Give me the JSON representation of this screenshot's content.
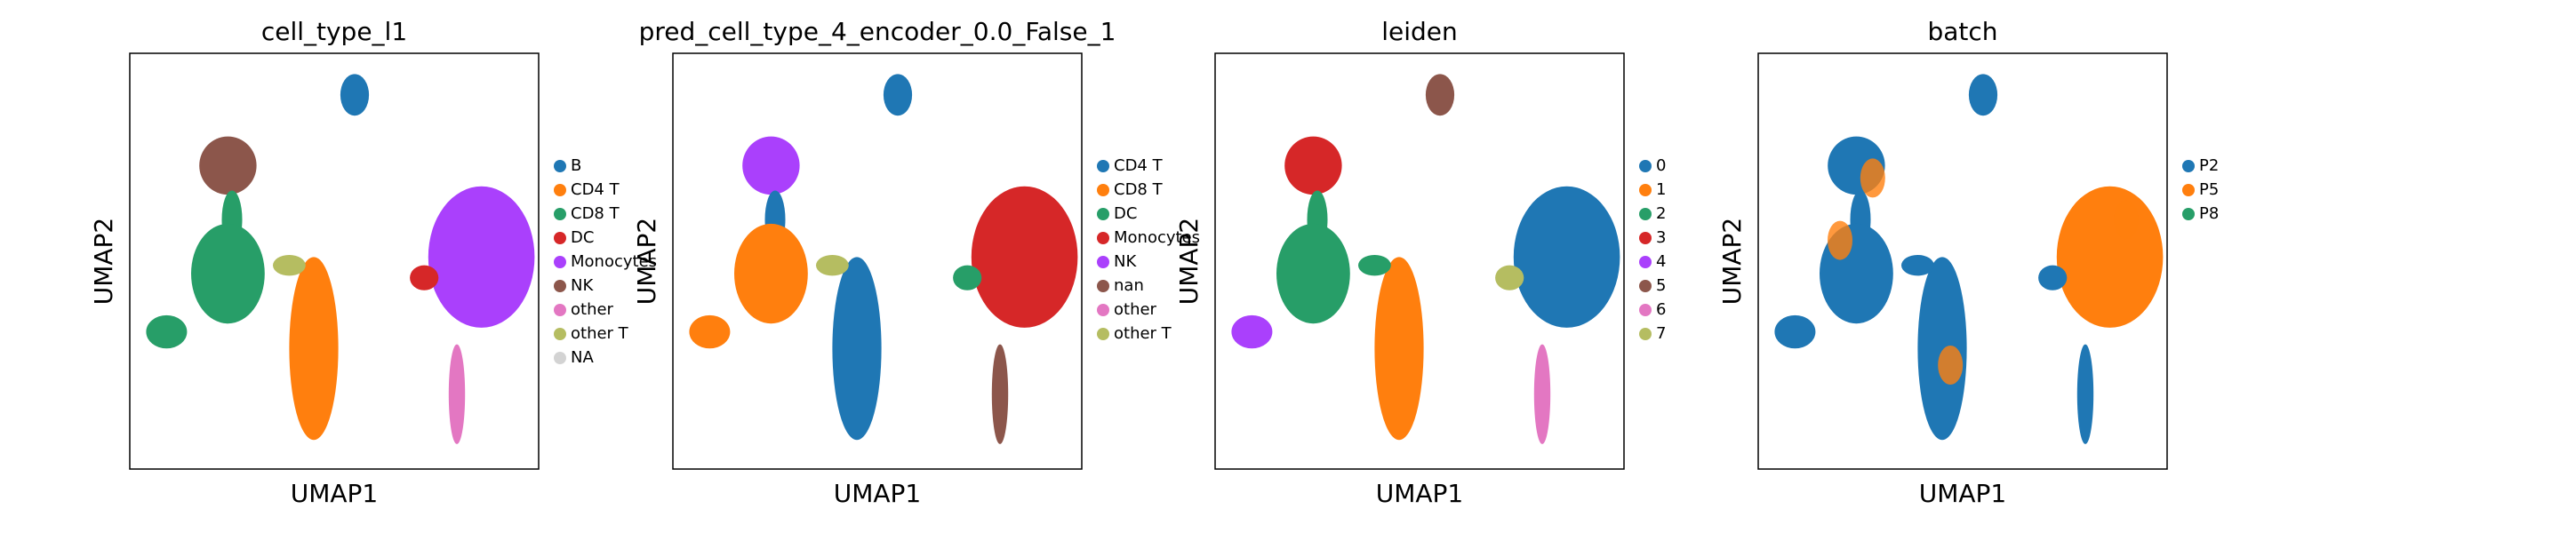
{
  "chart_data": [
    {
      "type": "scatter",
      "title": "cell_type_l1",
      "x_label": "UMAP1",
      "y_label": "UMAP2",
      "series": [
        {
          "name": "B",
          "color": "#1f77b4"
        },
        {
          "name": "CD4 T",
          "color": "#ff7f0e"
        },
        {
          "name": "CD8 T",
          "color": "#279e68"
        },
        {
          "name": "DC",
          "color": "#d62728"
        },
        {
          "name": "Monocytes",
          "color": "#aa40fc"
        },
        {
          "name": "NK",
          "color": "#8c564b"
        },
        {
          "name": "other",
          "color": "#e377c2"
        },
        {
          "name": "other T",
          "color": "#b5bd61"
        },
        {
          "name": "NA",
          "color": "#d3d3d3"
        }
      ]
    },
    {
      "type": "scatter",
      "title": "pred_cell_type_4_encoder_0.0_False_1",
      "x_label": "UMAP1",
      "y_label": "UMAP2",
      "series": [
        {
          "name": "CD4 T",
          "color": "#1f77b4"
        },
        {
          "name": "CD8 T",
          "color": "#ff7f0e"
        },
        {
          "name": "DC",
          "color": "#279e68"
        },
        {
          "name": "Monocytes",
          "color": "#d62728"
        },
        {
          "name": "NK",
          "color": "#aa40fc"
        },
        {
          "name": "nan",
          "color": "#8c564b"
        },
        {
          "name": "other",
          "color": "#e377c2"
        },
        {
          "name": "other T",
          "color": "#b5bd61"
        }
      ]
    },
    {
      "type": "scatter",
      "title": "leiden",
      "x_label": "UMAP1",
      "y_label": "UMAP2",
      "series": [
        {
          "name": "0",
          "color": "#1f77b4"
        },
        {
          "name": "1",
          "color": "#ff7f0e"
        },
        {
          "name": "2",
          "color": "#279e68"
        },
        {
          "name": "3",
          "color": "#d62728"
        },
        {
          "name": "4",
          "color": "#aa40fc"
        },
        {
          "name": "5",
          "color": "#8c564b"
        },
        {
          "name": "6",
          "color": "#e377c2"
        },
        {
          "name": "7",
          "color": "#b5bd61"
        }
      ]
    },
    {
      "type": "scatter",
      "title": "batch",
      "x_label": "UMAP1",
      "y_label": "UMAP2",
      "series": [
        {
          "name": "P2",
          "color": "#1f77b4"
        },
        {
          "name": "P5",
          "color": "#ff7f0e"
        },
        {
          "name": "P8",
          "color": "#279e68"
        }
      ]
    }
  ]
}
